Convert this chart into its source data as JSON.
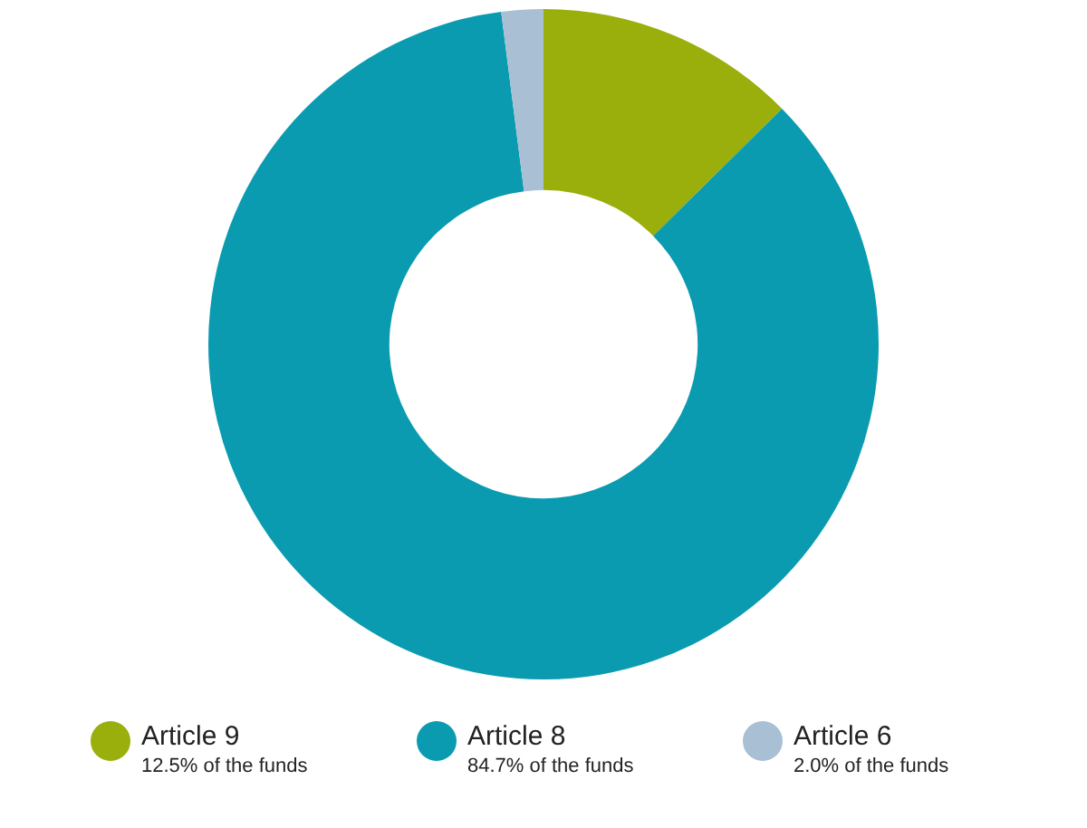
{
  "chart_data": {
    "type": "donut",
    "categories": [
      "Article 9",
      "Article 8",
      "Article 6"
    ],
    "values": [
      12.5,
      84.7,
      2.0
    ],
    "colors": [
      "#9aae0c",
      "#0a9bb0",
      "#a8bfd4"
    ],
    "value_labels": [
      "12.5% of the funds",
      "84.7% of the funds",
      "2.0% of the funds"
    ],
    "legend": "bottom"
  }
}
